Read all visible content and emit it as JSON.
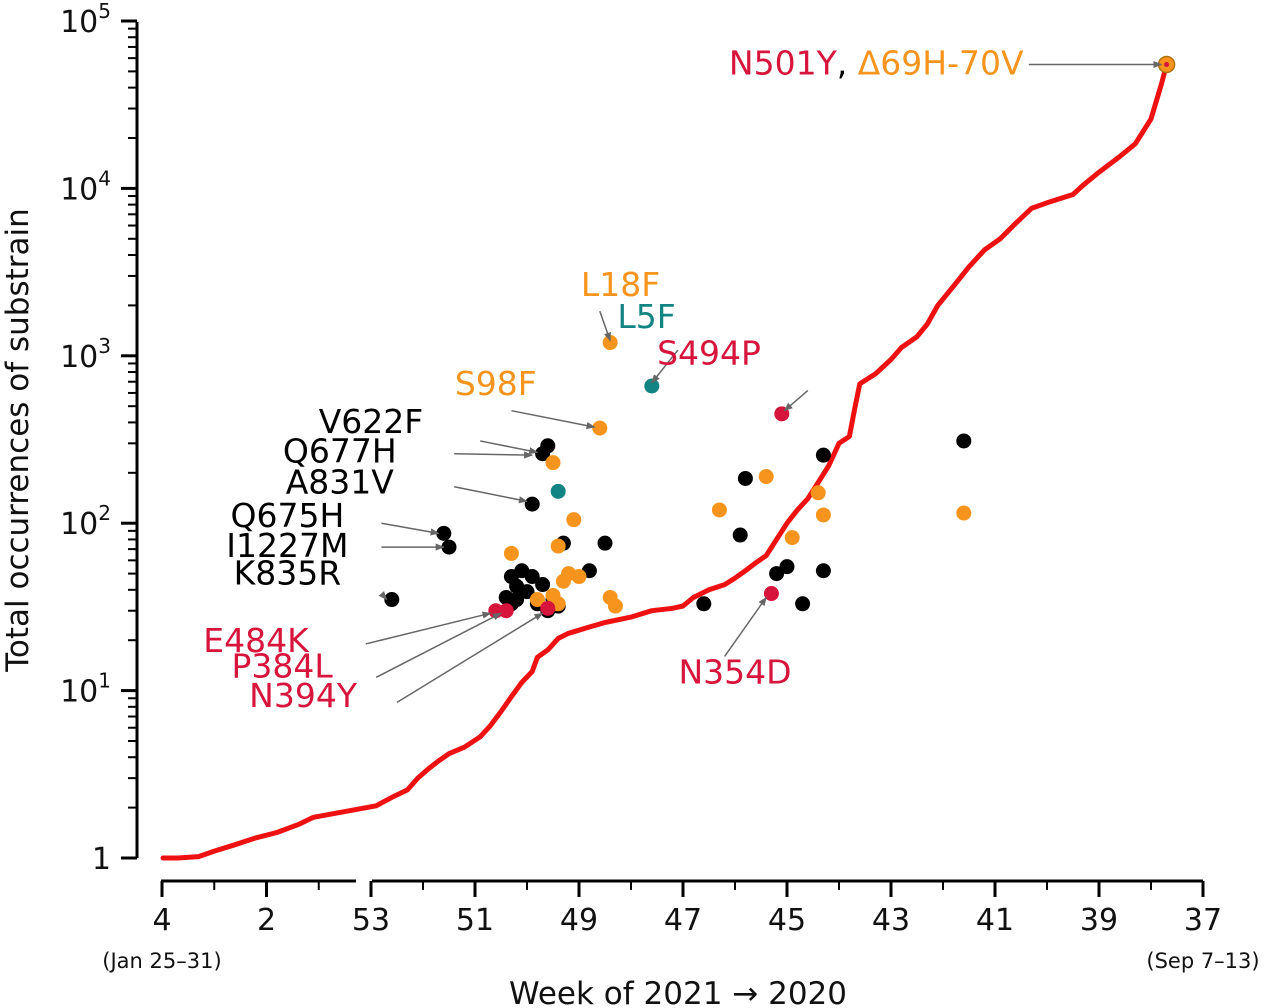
{
  "chart_data": {
    "type": "scatter",
    "title": "",
    "xlabel": "Week of 2021 → 2020",
    "ylabel": "Total occurrences of substrain",
    "y_scale": "log",
    "ylim": [
      1,
      100000
    ],
    "x_order": "reversed",
    "x_segments": [
      {
        "year": 2021,
        "from": 4,
        "to": 1,
        "ticks": [
          4,
          2
        ]
      },
      {
        "year": 2020,
        "from": 53,
        "to": 37,
        "ticks": [
          53,
          51,
          49,
          47,
          45,
          43,
          41,
          39,
          37
        ]
      }
    ],
    "x_tick_labels": [
      "4",
      "2",
      "53",
      "51",
      "49",
      "47",
      "45",
      "43",
      "41",
      "39",
      "37"
    ],
    "y_ticks": [
      {
        "value": 1,
        "base": "1",
        "exp": ""
      },
      {
        "value": 10,
        "base": "10",
        "exp": "1"
      },
      {
        "value": 100,
        "base": "10",
        "exp": "2"
      },
      {
        "value": 1000,
        "base": "10",
        "exp": "3"
      },
      {
        "value": 10000,
        "base": "10",
        "exp": "4"
      },
      {
        "value": 100000,
        "base": "10",
        "exp": "5"
      }
    ],
    "x_notes": {
      "left": "(Jan 25–31)",
      "right": "(Sep 7–13)"
    },
    "colors": {
      "line": "#ee1111",
      "black": "#000000",
      "orange": "#f7941d",
      "teal": "#138484",
      "red": "#d7143c",
      "arrow": "#666666"
    },
    "line_series": {
      "name": "N501Y, Δ69H-70V",
      "points": [
        [
          3.98,
          1
        ],
        [
          3.7,
          1
        ],
        [
          3.3,
          1.02
        ],
        [
          3.0,
          1.1
        ],
        [
          2.6,
          1.2
        ],
        [
          2.2,
          1.32
        ],
        [
          1.8,
          1.42
        ],
        [
          1.4,
          1.58
        ],
        [
          1.1,
          1.75
        ],
        [
          52.9,
          2.05
        ],
        [
          52.6,
          2.3
        ],
        [
          52.3,
          2.55
        ],
        [
          52.1,
          3.0
        ],
        [
          51.9,
          3.4
        ],
        [
          51.7,
          3.8
        ],
        [
          51.5,
          4.2
        ],
        [
          51.2,
          4.6
        ],
        [
          50.9,
          5.3
        ],
        [
          50.7,
          6.2
        ],
        [
          50.5,
          7.5
        ],
        [
          50.3,
          9.2
        ],
        [
          50.1,
          11.2
        ],
        [
          49.9,
          13.0
        ],
        [
          49.8,
          15.8
        ],
        [
          49.6,
          17.5
        ],
        [
          49.4,
          20.5
        ],
        [
          49.2,
          22.0
        ],
        [
          48.8,
          24.0
        ],
        [
          48.5,
          25.5
        ],
        [
          48.0,
          27.5
        ],
        [
          47.6,
          30.0
        ],
        [
          47.2,
          31.0
        ],
        [
          47.0,
          32.0
        ],
        [
          46.8,
          36.0
        ],
        [
          46.5,
          40.0
        ],
        [
          46.2,
          43.0
        ],
        [
          46.0,
          47.0
        ],
        [
          45.8,
          52.0
        ],
        [
          45.6,
          58.0
        ],
        [
          45.4,
          64.0
        ],
        [
          45.2,
          80.0
        ],
        [
          45.0,
          100.0
        ],
        [
          44.8,
          120.0
        ],
        [
          44.6,
          140.0
        ],
        [
          44.4,
          175.0
        ],
        [
          44.2,
          220.0
        ],
        [
          44.0,
          300.0
        ],
        [
          43.8,
          330.0
        ],
        [
          43.7,
          480.0
        ],
        [
          43.6,
          680.0
        ],
        [
          43.3,
          780.0
        ],
        [
          43.0,
          950.0
        ],
        [
          42.8,
          1120.0
        ],
        [
          42.5,
          1300.0
        ],
        [
          42.3,
          1550.0
        ],
        [
          42.1,
          2000.0
        ],
        [
          41.8,
          2600.0
        ],
        [
          41.5,
          3400.0
        ],
        [
          41.2,
          4300.0
        ],
        [
          40.9,
          5000.0
        ],
        [
          40.6,
          6200.0
        ],
        [
          40.3,
          7600.0
        ],
        [
          40.0,
          8200.0
        ],
        [
          39.5,
          9200.0
        ],
        [
          39.3,
          10500.0
        ],
        [
          39.0,
          12500.0
        ],
        [
          38.6,
          15500.0
        ],
        [
          38.3,
          18500.0
        ],
        [
          38.0,
          26000.0
        ],
        [
          37.8,
          42000.0
        ],
        [
          37.7,
          55000.0
        ]
      ]
    },
    "point_series": [
      {
        "name": "black",
        "color": "#000000",
        "points": [
          [
            51.6,
            87
          ],
          [
            51.5,
            72
          ],
          [
            52.6,
            35
          ],
          [
            49.7,
            260
          ],
          [
            49.6,
            290
          ],
          [
            49.9,
            130
          ],
          [
            50.3,
            48
          ],
          [
            50.2,
            42
          ],
          [
            50.1,
            52
          ],
          [
            50.0,
            39
          ],
          [
            49.9,
            48
          ],
          [
            49.7,
            43
          ],
          [
            49.5,
            35
          ],
          [
            49.4,
            32
          ],
          [
            49.3,
            76
          ],
          [
            49.6,
            30
          ],
          [
            49.8,
            33
          ],
          [
            49.4,
            32
          ],
          [
            50.3,
            33
          ],
          [
            50.2,
            35
          ],
          [
            48.8,
            52
          ],
          [
            48.5,
            76
          ],
          [
            46.6,
            33
          ],
          [
            45.8,
            185
          ],
          [
            45.9,
            85
          ],
          [
            45.2,
            50
          ],
          [
            45.0,
            55
          ],
          [
            44.7,
            33
          ],
          [
            44.3,
            255
          ],
          [
            44.3,
            52
          ],
          [
            41.6,
            310
          ],
          [
            50.4,
            36
          ]
        ]
      },
      {
        "name": "orange",
        "color": "#f7941d",
        "points": [
          [
            48.4,
            1200
          ],
          [
            48.6,
            370
          ],
          [
            49.5,
            230
          ],
          [
            49.1,
            105
          ],
          [
            49.4,
            73
          ],
          [
            49.0,
            48
          ],
          [
            49.2,
            50
          ],
          [
            49.3,
            45
          ],
          [
            49.5,
            37
          ],
          [
            49.4,
            33
          ],
          [
            48.4,
            36
          ],
          [
            48.3,
            32
          ],
          [
            50.3,
            66
          ],
          [
            46.3,
            120
          ],
          [
            45.4,
            190
          ],
          [
            44.9,
            82
          ],
          [
            44.4,
            152
          ],
          [
            44.3,
            112
          ],
          [
            41.6,
            115
          ],
          [
            49.8,
            35
          ]
        ]
      },
      {
        "name": "teal",
        "color": "#138484",
        "points": [
          [
            47.6,
            660
          ],
          [
            49.4,
            155
          ]
        ]
      },
      {
        "name": "red",
        "color": "#d7143c",
        "points": [
          [
            45.1,
            450
          ],
          [
            45.3,
            38
          ],
          [
            50.6,
            30
          ],
          [
            50.4,
            30
          ],
          [
            49.6,
            31
          ]
        ]
      }
    ],
    "highlight_point": [
      37.7,
      55000
    ],
    "annotations": [
      {
        "label": "L18F",
        "color": "orange",
        "text_at": [
          48.2,
          2270
        ],
        "arrow_from": [
          48.6,
          1850
        ],
        "arrow_to": [
          48.4,
          1230
        ]
      },
      {
        "label": "L5F",
        "color": "teal",
        "text_at": [
          47.7,
          1470
        ],
        "arrow_from": [
          47.1,
          1080
        ],
        "arrow_to": [
          47.6,
          690
        ]
      },
      {
        "label": "S494P",
        "color": "red",
        "text_at": [
          46.5,
          890
        ],
        "arrow_from": [
          44.6,
          620
        ],
        "arrow_to": [
          45.05,
          470
        ]
      },
      {
        "label": "S98F",
        "color": "orange",
        "text_at": [
          50.6,
          585
        ],
        "arrow_from": [
          50.3,
          470
        ],
        "arrow_to": [
          48.7,
          375
        ]
      },
      {
        "label": "V622F",
        "color": "black",
        "text_at": [
          53.0,
          345
        ],
        "arrow_from": [
          50.9,
          310
        ],
        "arrow_to": [
          49.8,
          265
        ]
      },
      {
        "label": "Q677H",
        "color": "black",
        "text_at": [
          53.6,
          230
        ],
        "arrow_from": [
          51.4,
          260
        ],
        "arrow_to": [
          49.9,
          255
        ]
      },
      {
        "label": "A831V",
        "color": "black",
        "text_at": [
          53.6,
          150
        ],
        "arrow_from": [
          51.4,
          165
        ],
        "arrow_to": [
          50.0,
          135
        ]
      },
      {
        "label": "Q675H",
        "color": "black",
        "text_at": [
          1.6,
          95
        ],
        "arrow_from": [
          52.8,
          100
        ],
        "arrow_to": [
          51.7,
          87
        ]
      },
      {
        "label": "I1227M",
        "color": "black",
        "text_at": [
          1.6,
          63
        ],
        "arrow_from": [
          52.8,
          72
        ],
        "arrow_to": [
          51.6,
          72
        ]
      },
      {
        "label": "K835R",
        "color": "black",
        "text_at": [
          1.6,
          43
        ],
        "arrow_from": [
          52.8,
          38
        ],
        "arrow_to": [
          52.7,
          35
        ]
      },
      {
        "label": "E484K",
        "color": "red",
        "text_at": [
          2.2,
          17
        ],
        "arrow_from": [
          53.1,
          19
        ],
        "arrow_to": [
          50.7,
          29
        ]
      },
      {
        "label": "P384L",
        "color": "red",
        "text_at": [
          1.7,
          12
        ],
        "arrow_from": [
          52.9,
          12
        ],
        "arrow_to": [
          50.5,
          29
        ]
      },
      {
        "label": "N394Y",
        "color": "red",
        "text_at": [
          1.3,
          8
        ],
        "arrow_from": [
          52.5,
          8.5
        ],
        "arrow_to": [
          49.7,
          29
        ]
      },
      {
        "label": "N354D",
        "color": "red",
        "text_at": [
          46.0,
          11
        ],
        "arrow_from": [
          46.2,
          16
        ],
        "arrow_to": [
          45.4,
          36
        ]
      }
    ],
    "top_annotation": {
      "parts": [
        {
          "text": "N501Y",
          "color": "red"
        },
        {
          "text": ", ",
          "color": "black"
        },
        {
          "text": "Δ69H-70V",
          "color": "orange"
        }
      ],
      "text_end_at": [
        40.45,
        48000
      ],
      "arrow_from": [
        40.35,
        55000
      ],
      "arrow_to": [
        37.8,
        55000
      ]
    }
  }
}
